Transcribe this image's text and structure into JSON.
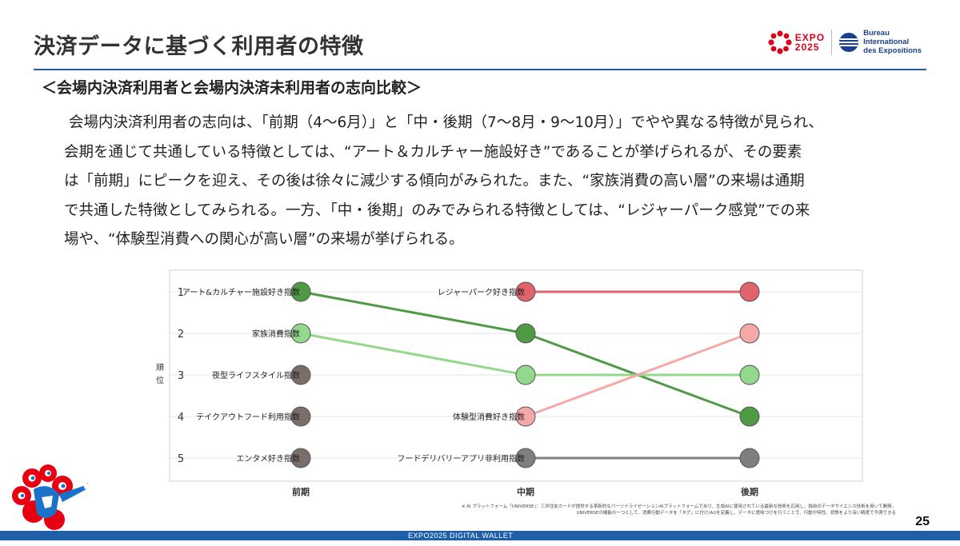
{
  "header": {
    "title": "決済データに基づく利用者の特徴",
    "expo_logo_text": [
      "EXPO",
      "2025"
    ],
    "bie_logo_text": [
      "Bureau",
      "International",
      "des Expositions"
    ]
  },
  "subtitle": "＜会場内決済利用者と会場内決済未利用者の志向比較＞",
  "body_lines": [
    "会場内決済利用者の志向は、「前期（4～6月）」と「中・後期（7～8月・9～10月）」でやや異なる特徴が見られ、",
    "会期を通じて共通している特徴としては、“アート＆カルチャー施設好き”であることが挙げられるが、その要素",
    "は「前期」にピークを迎え、その後は徐々に減少する傾向がみられた。また、“家族消費の高い層”の来場は通期",
    "で共通した特徴としてみられる。一方、「中・後期」のみでみられる特徴としては、“レジャーパーク感覚”での来",
    "場や、“体験型消費への関心が高い層”の来場が挙げられる。"
  ],
  "chart_data": {
    "type": "line",
    "subtype": "bump",
    "x": [
      "前期",
      "中期",
      "後期"
    ],
    "ylabel": "順位",
    "ranks": [
      "1",
      "2",
      "3",
      "4",
      "5"
    ],
    "labels_by_period": {
      "前期": [
        "アート&カルチャー施設好き指数",
        "家族消費指数",
        "夜型ライフスタイル指数",
        "テイクアウトフード利用指数",
        "エンタメ好き指数"
      ],
      "中期": [
        "レジャーパーク好き指数",
        "",
        "",
        "体験型消費好き指数",
        "フードデリバリーアプリ非利用指数"
      ]
    },
    "series": [
      {
        "name": "アート&カルチャー施設好き指数",
        "ranks": [
          1,
          2,
          4
        ],
        "color": "#4f9a45"
      },
      {
        "name": "家族消費指数",
        "ranks": [
          2,
          3,
          3
        ],
        "color": "#93d88c"
      },
      {
        "name": "レジャーパーク好き指数",
        "ranks": [
          null,
          1,
          1
        ],
        "color": "#e0626a"
      },
      {
        "name": "体験型消費好き指数",
        "ranks": [
          null,
          4,
          2
        ],
        "color": "#f5a8a8"
      },
      {
        "name": "フードデリバリーアプリ非利用指数",
        "ranks": [
          null,
          5,
          5
        ],
        "color": "#7f7f7f"
      },
      {
        "name": "夜型ライフスタイル指数",
        "ranks": [
          3,
          null,
          null
        ],
        "color": "#7a6e6b"
      },
      {
        "name": "テイクアウトフード利用指数",
        "ranks": [
          4,
          null,
          null
        ],
        "color": "#7a6e6b"
      },
      {
        "name": "エンタメ好き指数",
        "ranks": [
          5,
          null,
          null
        ],
        "color": "#7a6e6b"
      }
    ],
    "grid": true
  },
  "footnote": [
    "※ AI プラットフォーム「UNIVERSE」：三井住友カードが提供する革新的なパーソナライゼーションAIプラットフォームであり、生成AIに使用されている最新な技術を応用し、独自のデータサイエンス技術を用いて開発。",
    "UNIVERSEの機能の一つとして、消費行動データを「タグ」に付け(AI)を定義し、データに意味づけを行うことで、行動や特性、状態をより深い精度で予測できる"
  ],
  "footer": {
    "label": "EXPO2025 DIGITAL WALLET",
    "page_number": "25"
  },
  "colors": {
    "accent": "#1f5fa8",
    "expo_red": "#d9001b"
  }
}
